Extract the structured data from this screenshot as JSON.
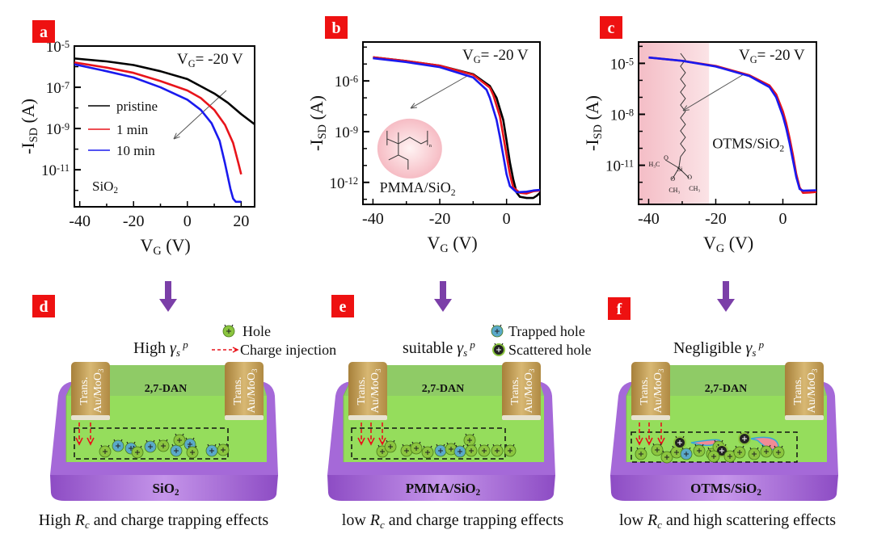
{
  "panel_labels": [
    "a",
    "b",
    "c",
    "d",
    "e",
    "f"
  ],
  "colors": {
    "label_bg": "#ee1111",
    "pristine": "#000000",
    "one_min": "#e8141b",
    "ten_min": "#1a1aee",
    "arrow": "#7b3fa8",
    "hole": "#8bc53f",
    "trapped": "#5aa9c9",
    "scattered": "#222222",
    "substrate": "#a569d8",
    "channel": "#95dd5c",
    "electrode": "#c9a450"
  },
  "chart_data": [
    {
      "type": "line",
      "panel": "a",
      "y_scale": "log",
      "xlabel": {
        "main": "V",
        "sub": "G",
        "rest": " (V)"
      },
      "ylabel": {
        "main": "-I",
        "sub": "SD",
        "rest": " (A)"
      },
      "xlim": [
        -42,
        25
      ],
      "ylim": [
        1.6e-13,
        1e-05
      ],
      "xticks": [
        -40,
        -20,
        0,
        20
      ],
      "yticks": [
        1e-05,
        1e-07,
        1e-09,
        1e-11
      ],
      "annotation": {
        "main": "V",
        "sub": "G",
        "rest": "= -20 V"
      },
      "inset_label": {
        "main": "SiO",
        "sub": "2",
        "rest": ""
      },
      "legend_placement": "center-left",
      "series": [
        {
          "name": "pristine",
          "color": "#000000",
          "x": [
            -42,
            -30,
            -20,
            -10,
            0,
            10,
            15,
            20,
            25
          ],
          "y": [
            2.5e-06,
            1.8e-06,
            1.2e-06,
            6e-07,
            2.5e-07,
            5e-08,
            1.8e-08,
            5e-09,
            1.6e-09
          ]
        },
        {
          "name": "1 min",
          "color": "#e8141b",
          "x": [
            -42,
            -30,
            -20,
            -10,
            0,
            5,
            10,
            14,
            17,
            19,
            20
          ],
          "y": [
            1.6e-06,
            9e-07,
            5e-07,
            2e-07,
            7e-08,
            3e-08,
            8e-09,
            1.5e-09,
            2e-10,
            2e-11,
            6e-12
          ]
        },
        {
          "name": "10 min",
          "color": "#1a1aee",
          "x": [
            -42,
            -30,
            -20,
            -10,
            0,
            5,
            9,
            12,
            14,
            16,
            17,
            18,
            20
          ],
          "y": [
            1.3e-06,
            6e-07,
            3e-07,
            1e-07,
            2.5e-08,
            8e-09,
            1.8e-09,
            2.5e-10,
            2e-11,
            1.2e-12,
            4e-13,
            2.8e-13,
            2.8e-13
          ]
        }
      ]
    },
    {
      "type": "line",
      "panel": "b",
      "y_scale": "log",
      "xlabel": {
        "main": "V",
        "sub": "G",
        "rest": " (V)"
      },
      "ylabel": {
        "main": "-I",
        "sub": "SD",
        "rest": " (A)"
      },
      "xlim": [
        -43,
        10
      ],
      "ylim": [
        5e-14,
        0.0002
      ],
      "xticks": [
        -40,
        -20,
        0
      ],
      "yticks": [
        1e-06,
        1e-09,
        1e-12
      ],
      "annotation": {
        "main": "V",
        "sub": "G",
        "rest": "= -20 V"
      },
      "inset_label": {
        "main": "PMMA/SiO",
        "sub": "2",
        "rest": ""
      },
      "series": [
        {
          "color": "#000000",
          "x": [
            -40,
            -30,
            -20,
            -10,
            -5,
            -3,
            -1,
            0,
            1,
            2,
            3,
            4,
            6,
            8,
            9,
            10
          ],
          "y": [
            2.5e-05,
            1.5e-05,
            8e-06,
            2.5e-06,
            5e-07,
            1e-07,
            5e-09,
            3e-10,
            1.5e-11,
            1.5e-12,
            2.5e-13,
            1.4e-13,
            1.2e-13,
            1.2e-13,
            1.6e-13,
            2.4e-13
          ]
        },
        {
          "color": "#e8141b",
          "x": [
            -40,
            -30,
            -20,
            -10,
            -5,
            -4,
            -2,
            -1,
            0,
            1,
            2,
            4,
            6,
            8,
            10
          ],
          "y": [
            2.5e-05,
            1.5e-05,
            8e-06,
            2.3e-06,
            4e-07,
            1.5e-07,
            8e-09,
            6e-10,
            4e-11,
            3e-12,
            5e-13,
            2.4e-13,
            2.2e-13,
            3e-13,
            3.3e-13
          ]
        },
        {
          "color": "#1a1aee",
          "x": [
            -40,
            -30,
            -20,
            -10,
            -6,
            -5,
            -3,
            -2,
            -1,
            0,
            1,
            3,
            6,
            8,
            10
          ],
          "y": [
            2.2e-05,
            1.3e-05,
            6.5e-06,
            1.6e-06,
            3e-07,
            1e-07,
            5e-09,
            5e-10,
            4e-11,
            3e-12,
            6e-13,
            2.6e-13,
            2.8e-13,
            3.3e-13,
            3.6e-13
          ]
        }
      ]
    },
    {
      "type": "line",
      "panel": "c",
      "y_scale": "log",
      "xlabel": {
        "main": "V",
        "sub": "G",
        "rest": " (V)"
      },
      "ylabel": {
        "main": "-I",
        "sub": "SD",
        "rest": " (A)"
      },
      "xlim": [
        -43,
        10
      ],
      "ylim": [
        5e-14,
        0.00018
      ],
      "xticks": [
        -40,
        -20,
        0
      ],
      "yticks": [
        1e-05,
        1e-08,
        1e-11
      ],
      "annotation": {
        "main": "V",
        "sub": "G",
        "rest": "= -20 V"
      },
      "inset_label": {
        "main": "OTMS/SiO",
        "sub": "2",
        "rest": ""
      },
      "highlight_region": [
        -43,
        -22
      ],
      "series": [
        {
          "color": "#e8141b",
          "x": [
            -40,
            -30,
            -20,
            -10,
            -4,
            -2,
            0,
            1,
            2,
            3,
            4,
            5,
            6,
            8,
            10
          ],
          "y": [
            2.2e-05,
            1.4e-05,
            7e-06,
            2e-06,
            5e-07,
            1.5e-07,
            1.5e-08,
            3e-09,
            4e-10,
            4e-11,
            3e-12,
            5e-13,
            2.4e-13,
            2.5e-13,
            2.7e-13
          ]
        },
        {
          "color": "#1a1aee",
          "x": [
            -40,
            -30,
            -20,
            -10,
            -4,
            -2,
            0,
            1,
            2,
            3,
            4,
            5,
            6,
            8,
            10
          ],
          "y": [
            2.2e-05,
            1.4e-05,
            6.5e-06,
            1.8e-06,
            4e-07,
            1e-07,
            8e-09,
            1.5e-09,
            2e-10,
            2e-11,
            2e-12,
            4e-13,
            3.2e-13,
            3.3e-13,
            3.4e-13
          ]
        }
      ]
    }
  ],
  "diagrams": [
    {
      "panel": "d",
      "gamma": {
        "pre": "High ",
        "g": "γ",
        "sub": "s",
        "sup": "p"
      },
      "channel": "2,7-DAN",
      "electrode": {
        "line1": "Trans.",
        "line2": "Au/MoO",
        "sub": "3"
      },
      "substrate": {
        "main": "SiO",
        "sub": "2"
      },
      "caption": {
        "pre": "High ",
        "R": "R",
        "sub": "c",
        "post": " and charge trapping effects"
      },
      "legend": [
        {
          "icon": "hole",
          "text": "Hole"
        },
        {
          "icon": "dashed-arrow",
          "text": "Charge injection"
        }
      ]
    },
    {
      "panel": "e",
      "gamma": {
        "pre": "suitable ",
        "g": "γ",
        "sub": "s",
        "sup": "p"
      },
      "channel": "2,7-DAN",
      "electrode": {
        "line1": "Trans.",
        "line2": "Au/MoO",
        "sub": "3"
      },
      "substrate": {
        "main": "PMMA/SiO",
        "sub": "2"
      },
      "caption": {
        "pre": "low ",
        "R": "R",
        "sub": "c",
        "post": " and charge trapping effects"
      },
      "legend": [
        {
          "icon": "trapped-hole",
          "text": "Trapped hole"
        },
        {
          "icon": "scattered-hole",
          "text": "Scattered hole"
        }
      ]
    },
    {
      "panel": "f",
      "gamma": {
        "pre": "Negligible ",
        "g": "γ",
        "sub": "s",
        "sup": "p"
      },
      "channel": "2,7-DAN",
      "electrode": {
        "line1": "Trans.",
        "line2": "Au/MoO",
        "sub": "3"
      },
      "substrate": {
        "main": "OTMS/SiO",
        "sub": "2"
      },
      "caption": {
        "pre": "low ",
        "R": "R",
        "sub": "c",
        "post": " and high scattering effects"
      },
      "legend": []
    }
  ]
}
